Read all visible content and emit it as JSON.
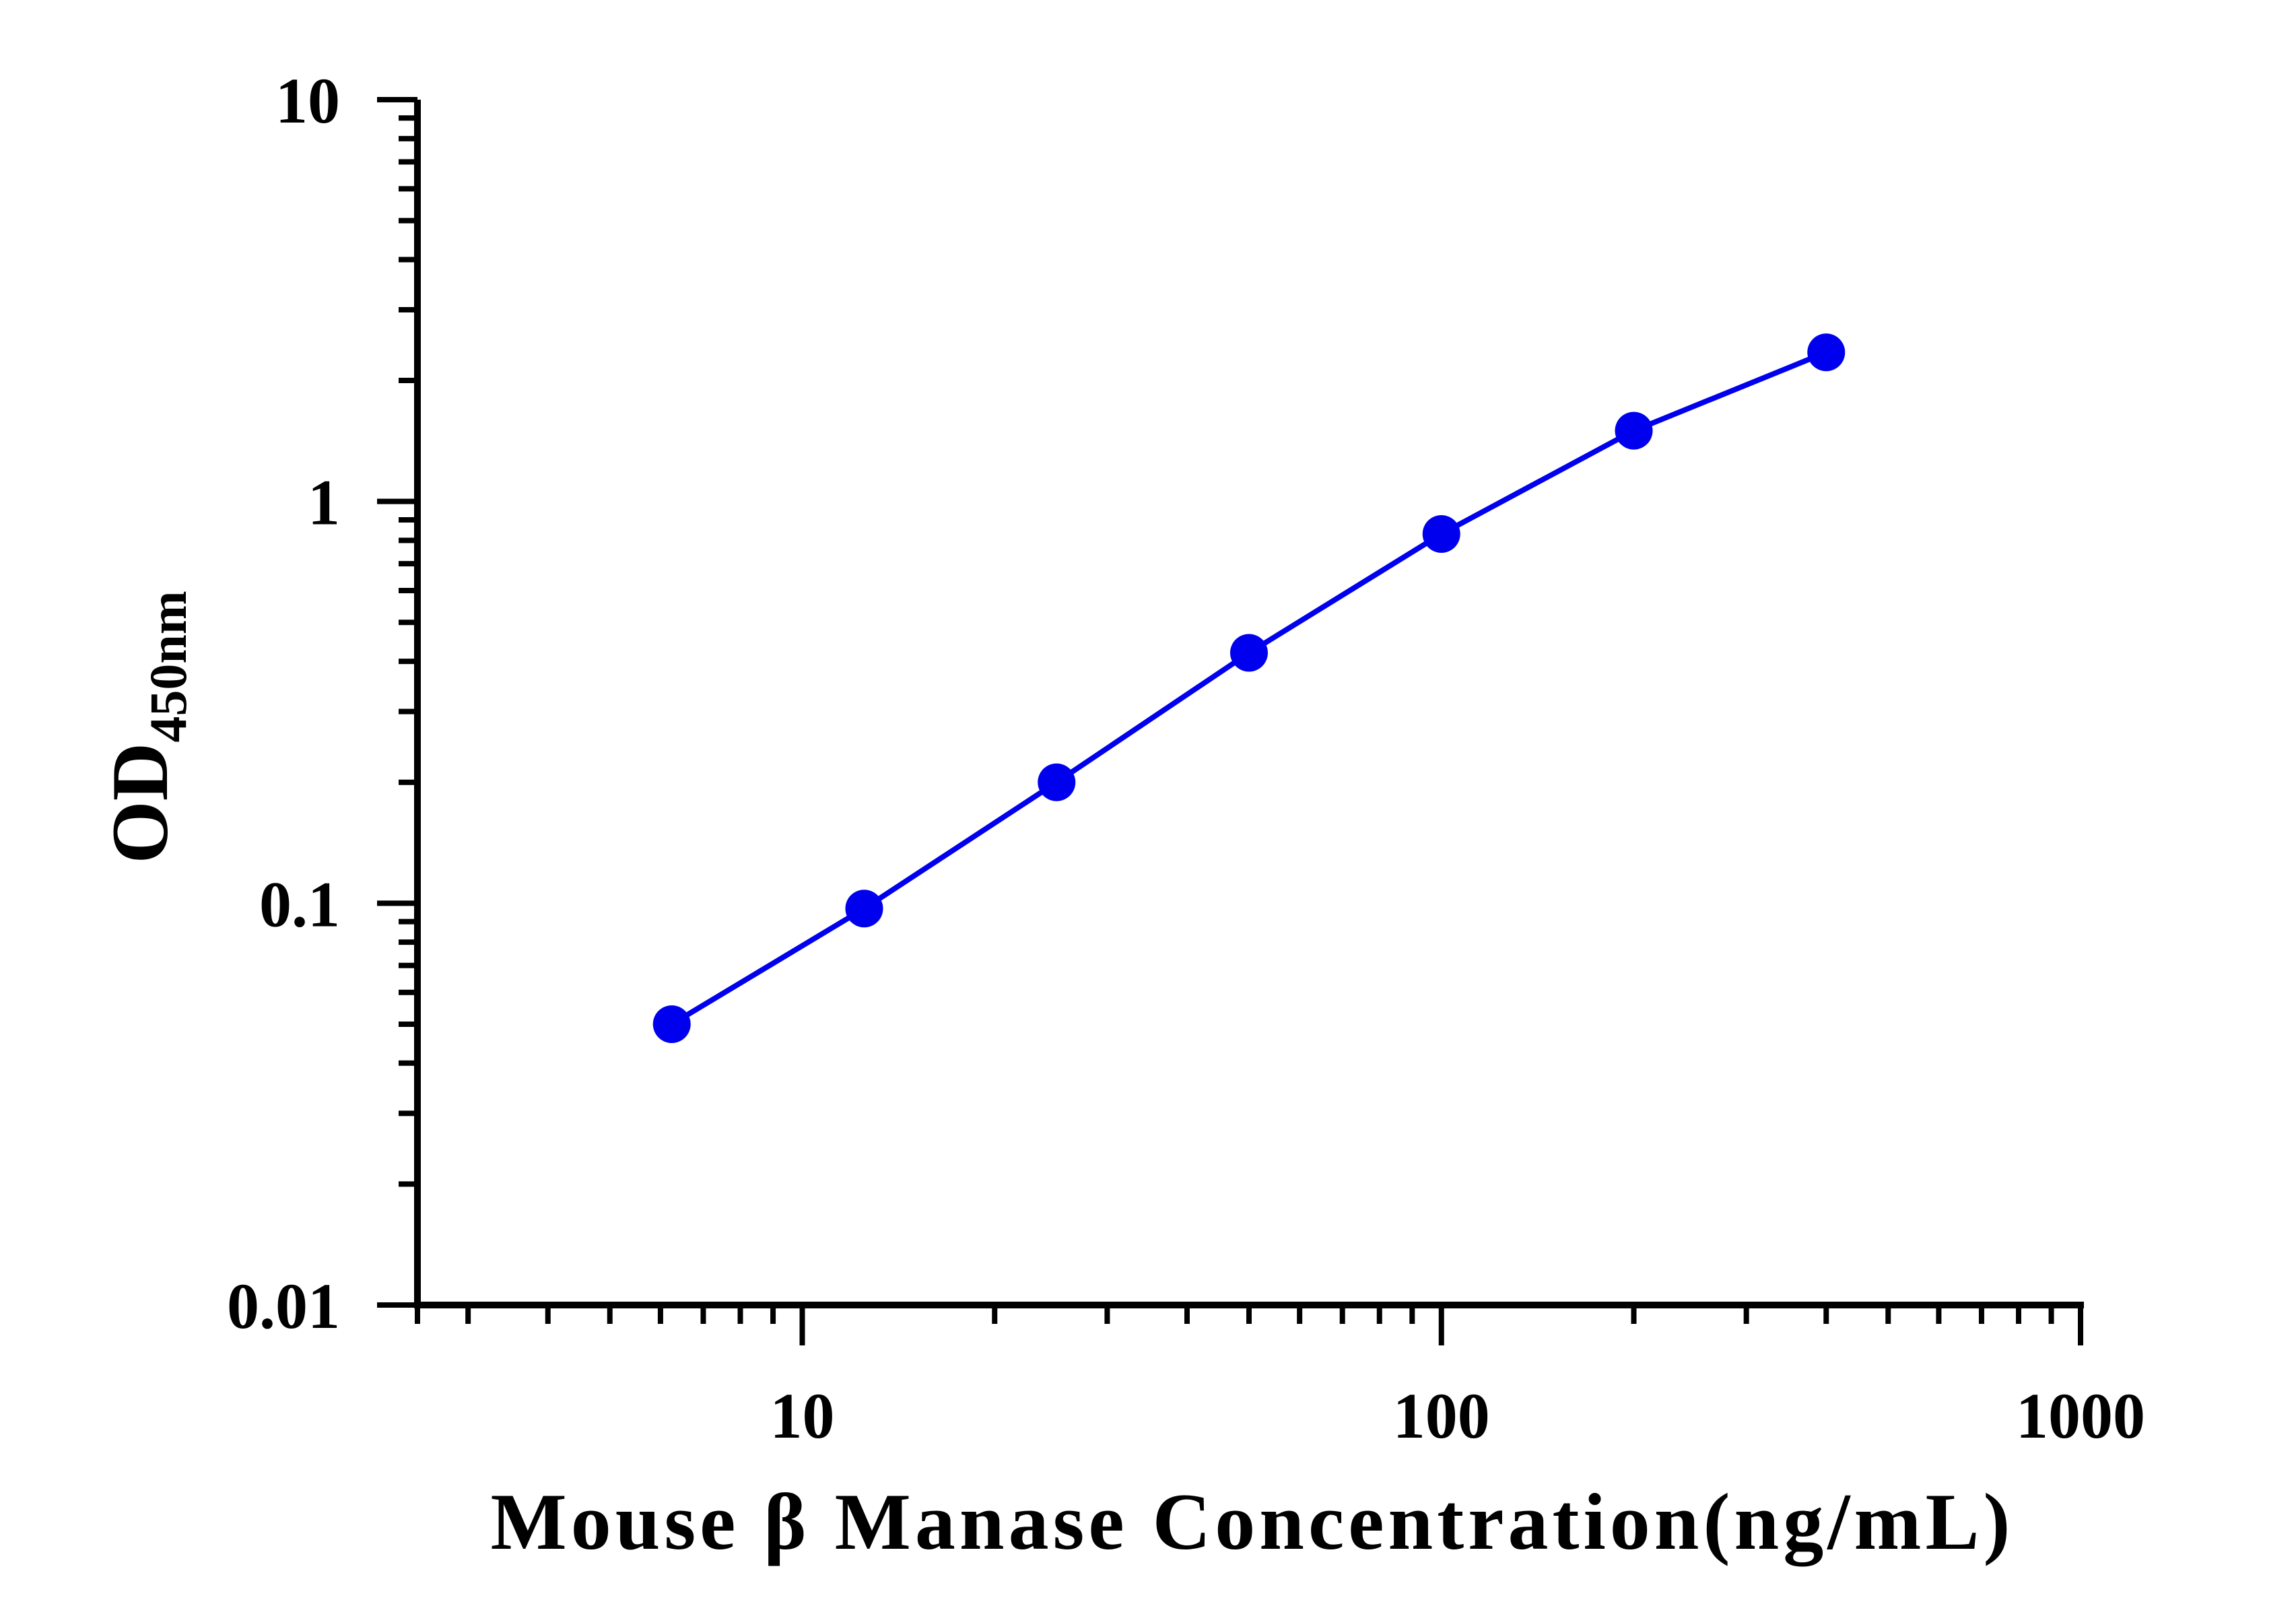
{
  "chart_data": {
    "type": "line",
    "xlabel": "Mouse β Manase Concentration(ng/mL)",
    "ylabel_main": "OD",
    "ylabel_sub": "450nm",
    "x_scale": "log",
    "y_scale": "log",
    "xlim": [
      2.5,
      1000
    ],
    "ylim": [
      0.01,
      10
    ],
    "x_ticks": [
      10,
      100,
      1000
    ],
    "x_tick_labels": [
      "10",
      "100",
      "1000"
    ],
    "y_ticks": [
      0.01,
      0.1,
      1,
      10
    ],
    "y_tick_labels": [
      "0.01",
      "0.1",
      "1",
      "10"
    ],
    "grid": false,
    "series": [
      {
        "color": "#0000ee",
        "x": [
          6.25,
          12.5,
          25,
          50,
          100,
          200,
          400
        ],
        "y": [
          0.05,
          0.097,
          0.2,
          0.42,
          0.83,
          1.5,
          2.35
        ]
      }
    ]
  }
}
